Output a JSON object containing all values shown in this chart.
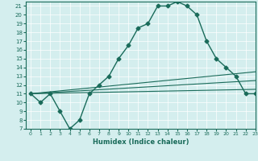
{
  "xlabel": "Humidex (Indice chaleur)",
  "xlim": [
    -0.5,
    23
  ],
  "ylim": [
    7,
    21.5
  ],
  "yticks": [
    7,
    8,
    9,
    10,
    11,
    12,
    13,
    14,
    15,
    16,
    17,
    18,
    19,
    20,
    21
  ],
  "xticks": [
    0,
    1,
    2,
    3,
    4,
    5,
    6,
    7,
    8,
    9,
    10,
    11,
    12,
    13,
    14,
    15,
    16,
    17,
    18,
    19,
    20,
    21,
    22,
    23
  ],
  "bg_color": "#d4eeee",
  "grid_color": "#b8d8d8",
  "line_color": "#1a6b5a",
  "lines": [
    {
      "x": [
        0,
        1,
        2,
        3,
        4,
        5,
        6,
        7,
        8,
        9,
        10,
        11,
        12,
        13,
        14,
        15,
        16,
        17,
        18,
        19,
        20,
        21,
        22,
        23
      ],
      "y": [
        11,
        10,
        11,
        9,
        7,
        8,
        11,
        12,
        13,
        15,
        16.5,
        18.5,
        19,
        21,
        21,
        21.5,
        21,
        20,
        17,
        15,
        14,
        13,
        11,
        11
      ],
      "marker": "D",
      "markersize": 2.5,
      "linewidth": 1.0
    },
    {
      "x": [
        0,
        23
      ],
      "y": [
        11,
        13.5
      ],
      "marker": null,
      "linewidth": 0.8
    },
    {
      "x": [
        0,
        23
      ],
      "y": [
        11,
        12.5
      ],
      "marker": null,
      "linewidth": 0.8
    },
    {
      "x": [
        0,
        23
      ],
      "y": [
        11,
        11.5
      ],
      "marker": null,
      "linewidth": 0.8
    }
  ]
}
